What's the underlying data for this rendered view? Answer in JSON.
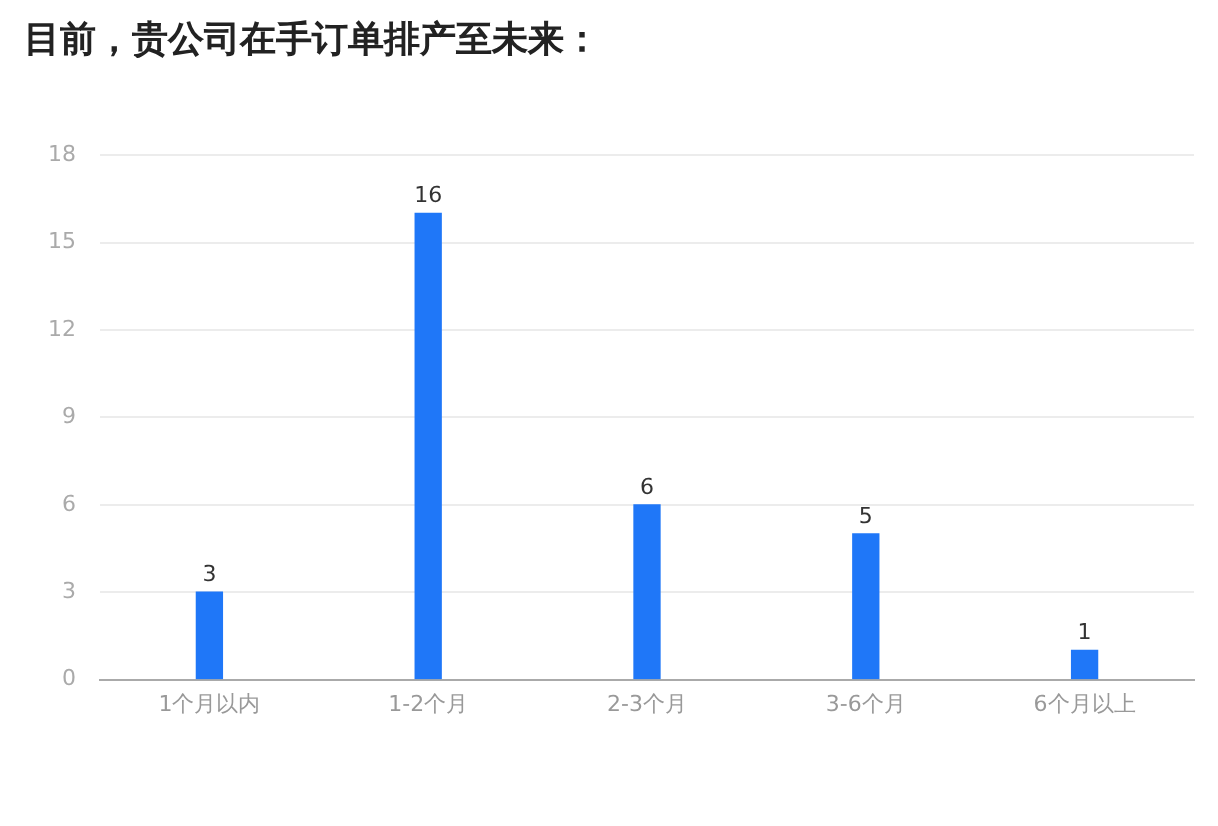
{
  "chart_data": {
    "type": "bar",
    "title": "目前，贵公司在手订单排产至未来：",
    "categories": [
      "1个月以内",
      "1-2个月",
      "2-3个月",
      "3-6个月",
      "6个月以上"
    ],
    "values": [
      3,
      16,
      6,
      5,
      1
    ],
    "color": "#1f77f8",
    "ylim": [
      0,
      18
    ],
    "yticks": [
      0,
      3,
      6,
      9,
      12,
      15,
      18
    ],
    "grid": "y",
    "data_labels": true
  }
}
